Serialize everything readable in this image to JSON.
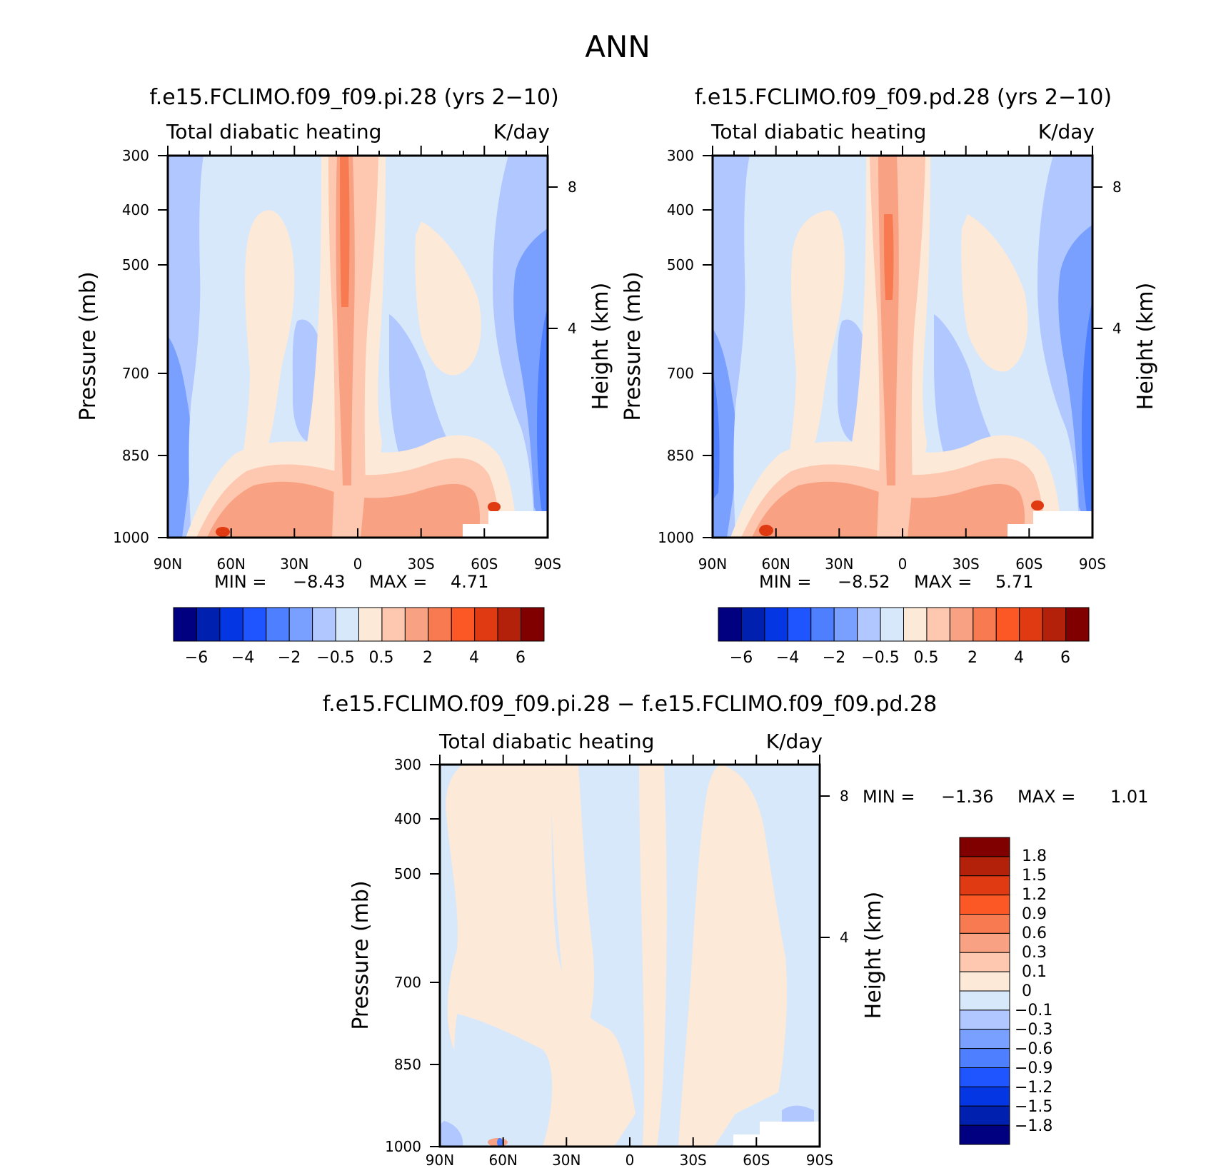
{
  "figure_title": "ANN",
  "colors": {
    "main_scale": [
      "#000080",
      "#0021b0",
      "#0536e3",
      "#1e55ff",
      "#4d7fff",
      "#7aa0ff",
      "#b0c8ff",
      "#d8e8fb",
      "#fde9d8",
      "#fdc7b0",
      "#f9a183",
      "#f87a50",
      "#fb5826",
      "#e03a12",
      "#b3210b",
      "#800000"
    ],
    "diff_scale": [
      "#000080",
      "#0021b0",
      "#0536e3",
      "#1e55ff",
      "#4d7fff",
      "#7aa0ff",
      "#b0c8ff",
      "#d8e8fb",
      "#fde9d8",
      "#fdc7b0",
      "#f9a183",
      "#f87a50",
      "#fb5826",
      "#e03a12",
      "#b3210b",
      "#800000"
    ]
  },
  "chart_data": [
    {
      "type": "heatmap",
      "id": "pi",
      "title": "f.e15.FCLIMO.f09_f09.pi.28 (yrs 2−10)",
      "left_label": "Total diabatic heating",
      "right_label": "K/day",
      "ylabel": "Pressure (mb)",
      "y2label": "Height (km)",
      "xticks": [
        "90N",
        "60N",
        "30N",
        "0",
        "30S",
        "60S",
        "90S"
      ],
      "yticks": [
        "300",
        "400",
        "500",
        "700",
        "850",
        "1000"
      ],
      "yticks_values": [
        300,
        400,
        500,
        700,
        850,
        1000
      ],
      "y2ticks": [
        "8",
        "4"
      ],
      "ylim": [
        1000,
        300
      ],
      "xlim": [
        90,
        -90
      ],
      "stats": {
        "min_label": "MIN =",
        "min": "−8.43",
        "max_label": "MAX =",
        "max": "4.71"
      },
      "levels": [
        "−6",
        "−4",
        "−2",
        "−0.5",
        "0.5",
        "2",
        "4",
        "6"
      ]
    },
    {
      "type": "heatmap",
      "id": "pd",
      "title": "f.e15.FCLIMO.f09_f09.pd.28 (yrs 2−10)",
      "left_label": "Total diabatic heating",
      "right_label": "K/day",
      "ylabel": "Pressure (mb)",
      "y2label": "Height (km)",
      "xticks": [
        "90N",
        "60N",
        "30N",
        "0",
        "30S",
        "60S",
        "90S"
      ],
      "yticks": [
        "300",
        "400",
        "500",
        "700",
        "850",
        "1000"
      ],
      "yticks_values": [
        300,
        400,
        500,
        700,
        850,
        1000
      ],
      "y2ticks": [
        "8",
        "4"
      ],
      "ylim": [
        1000,
        300
      ],
      "xlim": [
        90,
        -90
      ],
      "stats": {
        "min_label": "MIN =",
        "min": "−8.52",
        "max_label": "MAX =",
        "max": "5.71"
      },
      "levels": [
        "−6",
        "−4",
        "−2",
        "−0.5",
        "0.5",
        "2",
        "4",
        "6"
      ]
    },
    {
      "type": "heatmap",
      "id": "diff",
      "title": "f.e15.FCLIMO.f09_f09.pi.28 − f.e15.FCLIMO.f09_f09.pd.28",
      "left_label": "Total diabatic heating",
      "right_label": "K/day",
      "ylabel": "Pressure (mb)",
      "y2label": "Height (km)",
      "xticks": [
        "90N",
        "60N",
        "30N",
        "0",
        "30S",
        "60S",
        "90S"
      ],
      "yticks": [
        "300",
        "400",
        "500",
        "700",
        "850",
        "1000"
      ],
      "yticks_values": [
        300,
        400,
        500,
        700,
        850,
        1000
      ],
      "y2ticks": [
        "8",
        "4"
      ],
      "ylim": [
        1000,
        300
      ],
      "xlim": [
        90,
        -90
      ],
      "stats": {
        "min_label": "MIN =",
        "min": "−1.36",
        "max_label": "MAX =",
        "max": "1.01"
      },
      "levels": [
        "1.8",
        "1.5",
        "1.2",
        "0.9",
        "0.6",
        "0.3",
        "0.1",
        "0",
        "−0.1",
        "−0.3",
        "−0.6",
        "−0.9",
        "−1.2",
        "−1.5",
        "−1.8"
      ]
    }
  ]
}
